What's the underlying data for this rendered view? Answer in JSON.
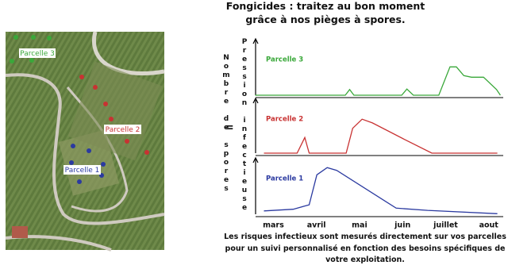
{
  "photo": {
    "labels": [
      "Parcelle 3",
      "Parcelle 2",
      "Parcelle 1"
    ]
  },
  "chart_data": {
    "type": "line",
    "title": "Fongicides : traitez au bon moment grâce à nos pièges à spores.",
    "y_label_left": "Nombre de spores",
    "y_label_equals": "=",
    "y_label_right": "Pression infectieuse",
    "footnote": "Les risques infectieux sont mesurés directement sur vos parcelles pour un suivi personnalisé en fonction des besoins spécifiques de votre exploitation.",
    "xlim": [
      -0.45,
      5.3
    ],
    "xticks": [
      {
        "value": 0,
        "label": "mars"
      },
      {
        "value": 1,
        "label": "avril"
      },
      {
        "value": 2,
        "label": "mai"
      },
      {
        "value": 3,
        "label": "juin"
      },
      {
        "value": 4,
        "label": "juillet"
      },
      {
        "value": 5,
        "label": "aout"
      }
    ],
    "ylim": [
      0,
      100
    ],
    "series": [
      {
        "name": "Parcelle 3",
        "color": "#3aa83a",
        "x": [
          -0.42,
          1.67,
          1.77,
          1.87,
          2.98,
          3.1,
          3.25,
          3.84,
          4.1,
          4.25,
          4.42,
          4.6,
          4.88,
          5.18,
          5.27
        ],
        "values": [
          0,
          0,
          11,
          0,
          0,
          12,
          0,
          0,
          55,
          55,
          38,
          35,
          35,
          11,
          0
        ]
      },
      {
        "name": "Parcelle 2",
        "color": "#c83232",
        "x": [
          -0.22,
          0.55,
          0.73,
          0.83,
          1.69,
          1.84,
          2.06,
          2.3,
          3.03,
          3.68,
          5.2
        ],
        "values": [
          0,
          0,
          29,
          0,
          0,
          46,
          63,
          56,
          26,
          0,
          0
        ]
      },
      {
        "name": "Parcelle 1",
        "color": "#2b3aa0",
        "x": [
          -0.22,
          0.46,
          0.83,
          1.01,
          1.25,
          1.47,
          2.85,
          3.58,
          5.2
        ],
        "values": [
          6,
          9,
          17,
          71,
          84,
          79,
          11,
          7,
          1
        ]
      }
    ]
  }
}
